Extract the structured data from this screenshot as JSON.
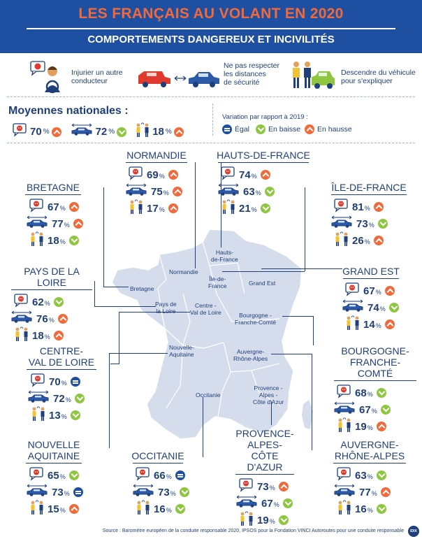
{
  "header": {
    "title": "LES FRANÇAIS AU VOLANT EN 2020",
    "subtitle": "COMPORTEMENTS DANGEREUX ET INCIVILITÉS"
  },
  "behaviors": {
    "insult": "Injurier un autre\nconducteur",
    "distance": "Ne pas respecter\nles distances\nde sécurité",
    "exit": "Descendre du véhicule\npour s'expliquer"
  },
  "national": {
    "title": "Moyennes nationales :",
    "values": [
      {
        "icon": "insult-face-icon",
        "value": "70",
        "trend": "up"
      },
      {
        "icon": "cars-distance-icon",
        "value": "72",
        "trend": "down"
      },
      {
        "icon": "people-arguing-icon",
        "value": "18",
        "trend": "up"
      }
    ],
    "percent": "%"
  },
  "legend": {
    "title": "Variation par rapport à 2019 :",
    "equal": "Égal",
    "down": "En baisse",
    "up": "En hausse"
  },
  "regions": [
    {
      "name": "NORMANDIE",
      "rows": [
        {
          "v": "69",
          "t": "up"
        },
        {
          "v": "75",
          "t": "up"
        },
        {
          "v": "17",
          "t": "up"
        }
      ]
    },
    {
      "name": "HAUTS-DE-FRANCE",
      "rows": [
        {
          "v": "74",
          "t": "up"
        },
        {
          "v": "63",
          "t": "down"
        },
        {
          "v": "21",
          "t": "down"
        }
      ]
    },
    {
      "name": "BRETAGNE",
      "rows": [
        {
          "v": "67",
          "t": "up"
        },
        {
          "v": "77",
          "t": "up"
        },
        {
          "v": "18",
          "t": "down"
        }
      ]
    },
    {
      "name": "ÎLE-DE-FRANCE",
      "rows": [
        {
          "v": "81",
          "t": "up"
        },
        {
          "v": "73",
          "t": "down"
        },
        {
          "v": "26",
          "t": "up"
        }
      ]
    },
    {
      "name": "PAYS DE LA LOIRE",
      "rows": [
        {
          "v": "62",
          "t": "down"
        },
        {
          "v": "76",
          "t": "up"
        },
        {
          "v": "18",
          "t": "up"
        }
      ]
    },
    {
      "name": "GRAND EST",
      "rows": [
        {
          "v": "67",
          "t": "up"
        },
        {
          "v": "74",
          "t": "down"
        },
        {
          "v": "14",
          "t": "up"
        }
      ]
    },
    {
      "name": "CENTRE-\nVAL DE LOIRE",
      "rows": [
        {
          "v": "70",
          "t": "eq"
        },
        {
          "v": "72",
          "t": "down"
        },
        {
          "v": "13",
          "t": "down"
        }
      ]
    },
    {
      "name": "BOURGOGNE-\nFRANCHE-COMTÉ",
      "rows": [
        {
          "v": "68",
          "t": "down"
        },
        {
          "v": "67",
          "t": "down"
        },
        {
          "v": "19",
          "t": "up"
        }
      ]
    },
    {
      "name": "NOUVELLE\nAQUITAINE",
      "rows": [
        {
          "v": "65",
          "t": "down"
        },
        {
          "v": "73",
          "t": "eq"
        },
        {
          "v": "15",
          "t": "up"
        }
      ]
    },
    {
      "name": "OCCITANIE",
      "rows": [
        {
          "v": "66",
          "t": "eq"
        },
        {
          "v": "73",
          "t": "down"
        },
        {
          "v": "16",
          "t": "down"
        }
      ]
    },
    {
      "name": "PROVENCE-\nALPES-\nCÔTE D'AZUR",
      "rows": [
        {
          "v": "73",
          "t": "up"
        },
        {
          "v": "67",
          "t": "down"
        },
        {
          "v": "19",
          "t": "down"
        }
      ]
    },
    {
      "name": "AUVERGNE-\nRHÔNE-ALPES",
      "rows": [
        {
          "v": "63",
          "t": "down"
        },
        {
          "v": "77",
          "t": "up"
        },
        {
          "v": "16",
          "t": "down"
        }
      ]
    }
  ],
  "map_labels": {
    "hdf": "Hauts-\nde-France",
    "normandie": "Normandie",
    "idf": "Île-de-\nFrance",
    "ge": "Grand Est",
    "bretagne": "Bretagne",
    "pdl": "Pays de\nla Loire",
    "cvl": "Centre -\nVal de Loire",
    "bfc": "Bourgogne -\nFranche-Comté",
    "na": "Nouvelle-\nAquitaine",
    "ara": "Auvergne-\nRhône-Alpes",
    "occ": "Occitanie",
    "paca": "Provence -\nAlpes -\nCôte d'Azur"
  },
  "source": "Source : Baromètre européen de la conduite responsable 2020, IPSOS pour la Fondation VINCI Autoroutes pour une conduite responsable",
  "logo": "IDIX",
  "colors": {
    "header": "#1e4fa0",
    "accent": "#f06a3c",
    "navy": "#1e3f7a",
    "down": "#8ec63f",
    "map": "#d5dcec"
  }
}
